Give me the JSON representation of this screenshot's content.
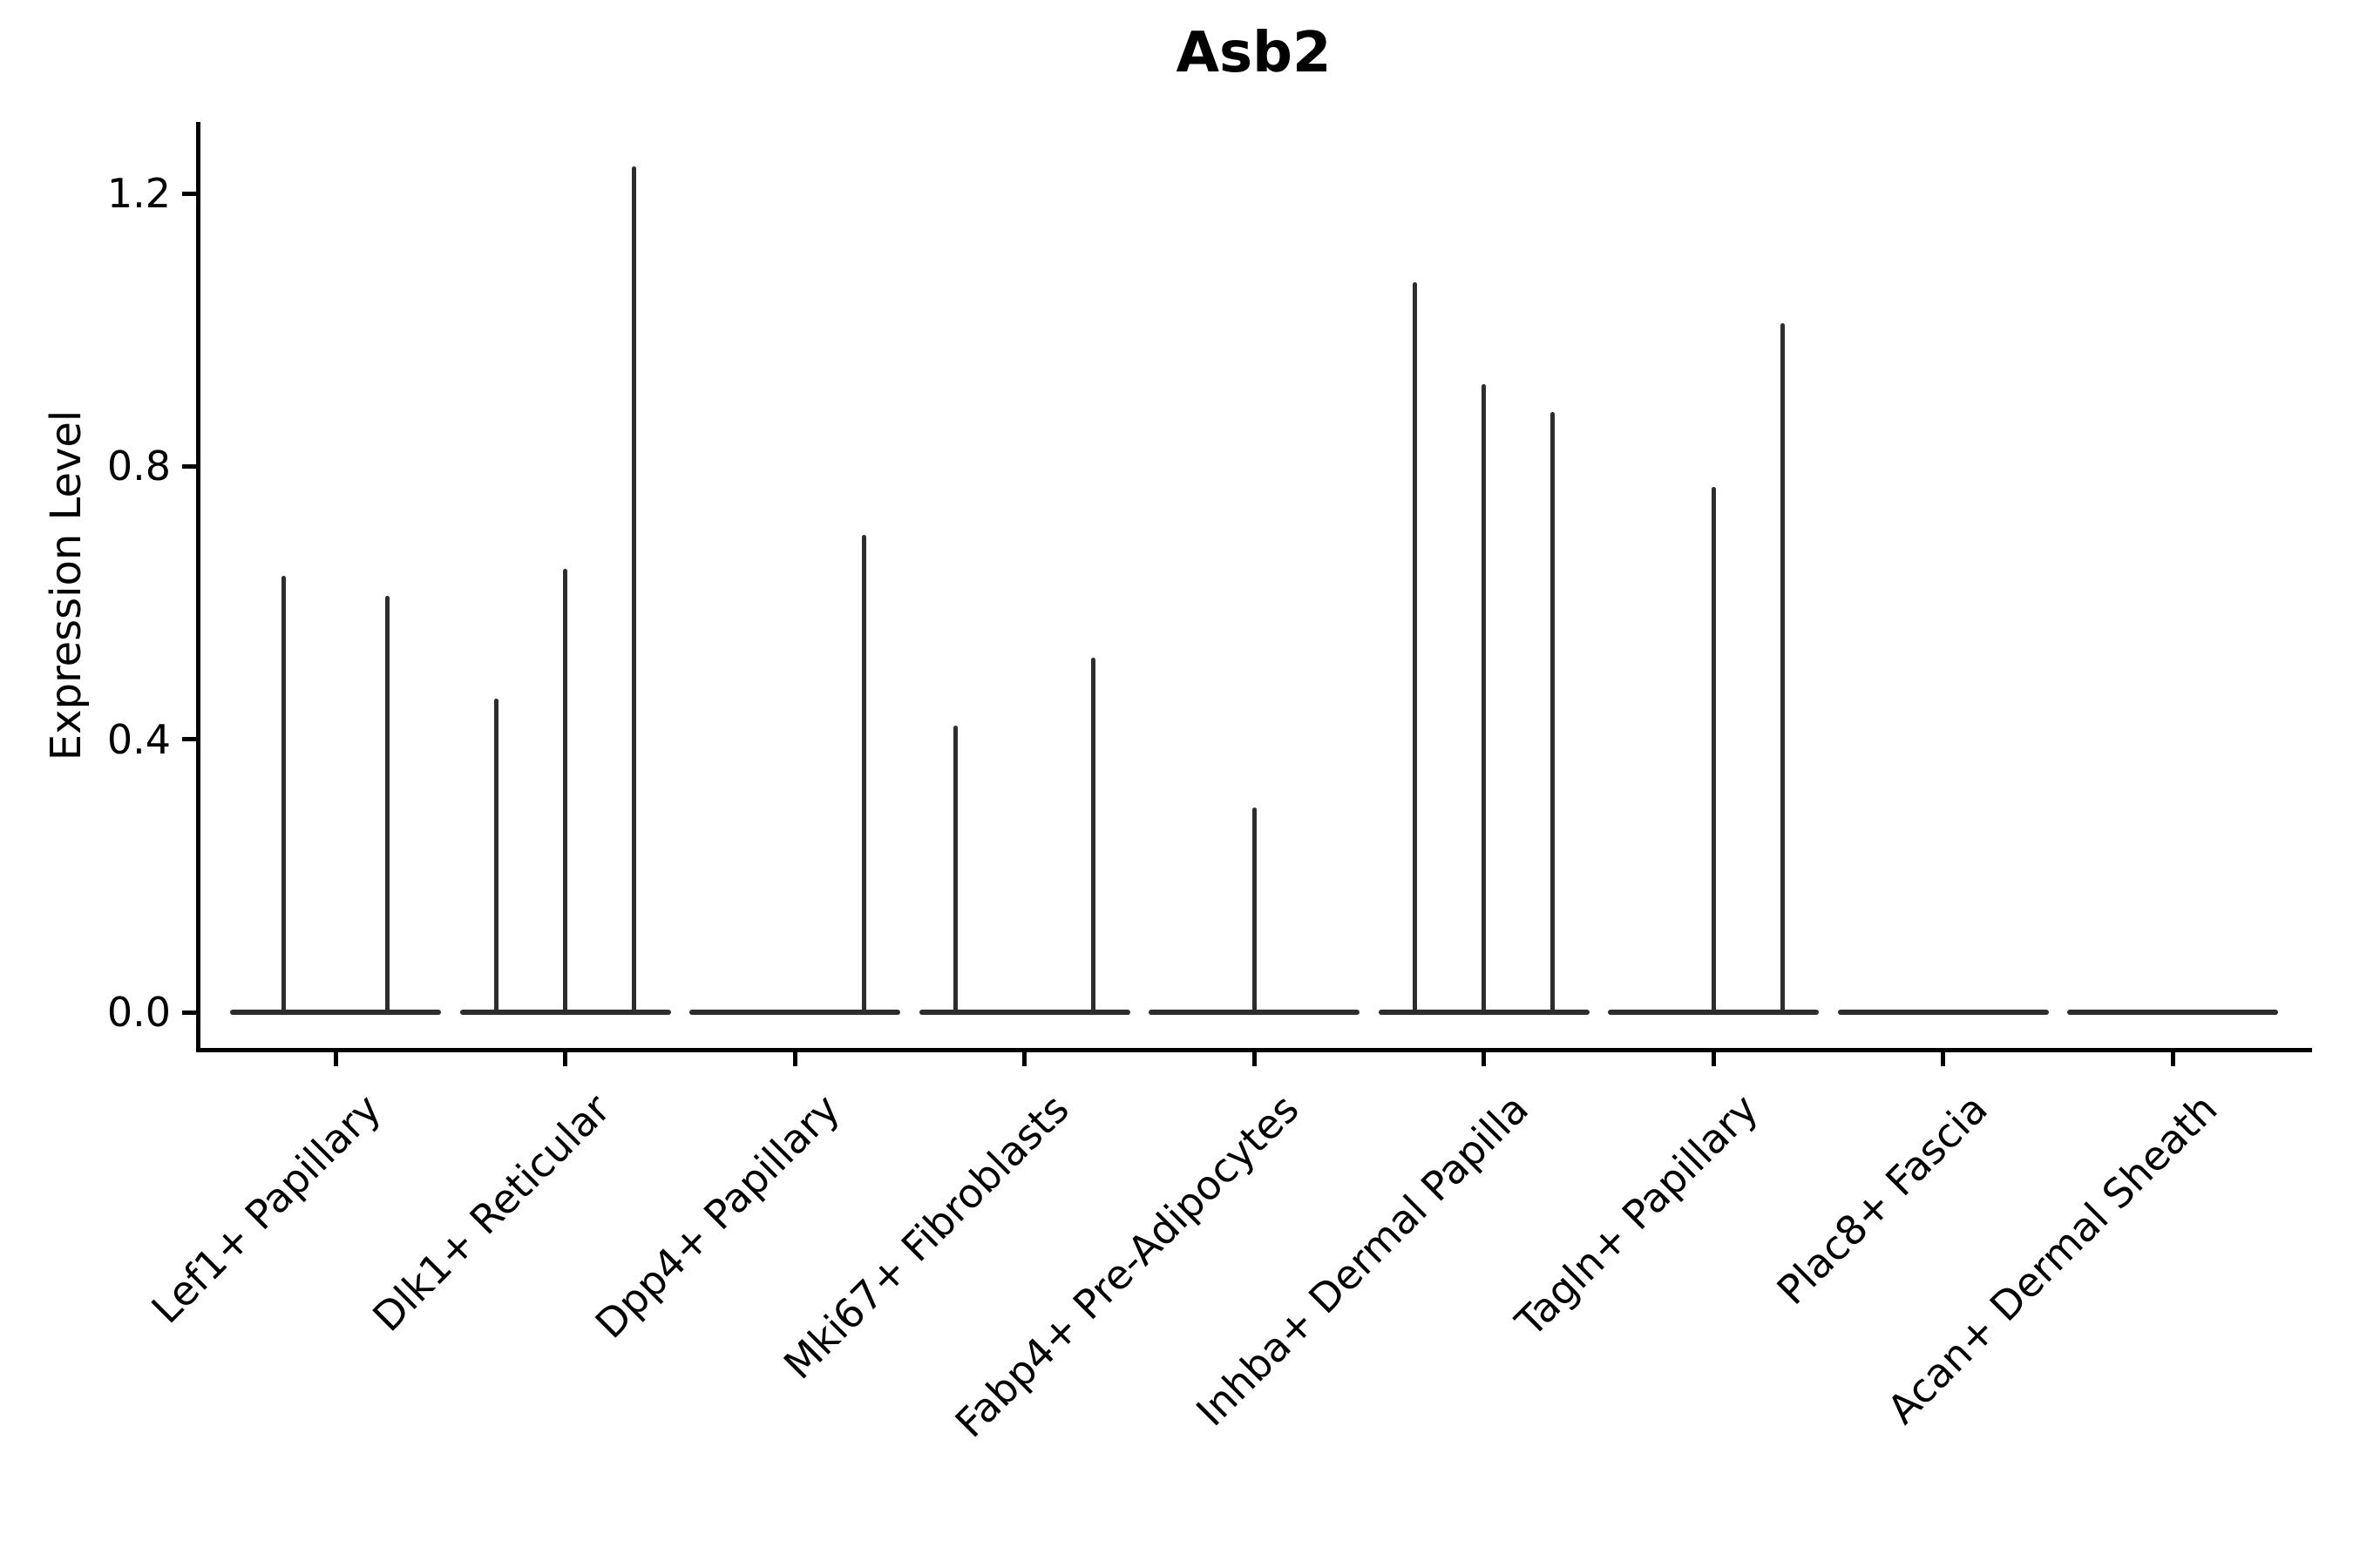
{
  "title": "Asb2",
  "axes": {
    "ylabel": "Expression Level",
    "ytick_labels": [
      "0.0",
      "0.4",
      "0.8",
      "1.2"
    ]
  },
  "colors": {
    "violin": "#2d2d2d",
    "axis": "#000000",
    "text": "#000000",
    "background": "#ffffff"
  },
  "chart_data": {
    "type": "violin",
    "title": "Asb2",
    "xlabel": "",
    "ylabel": "Expression Level",
    "yticks": [
      0.0,
      0.4,
      0.8,
      1.2
    ],
    "ylim": [
      -0.06,
      1.31
    ],
    "grid": false,
    "legend": "none",
    "description": "Violin plot of Asb2 expression per fibroblast cluster; each category contains dodged violins (split groups). Nearly all cells are at 0, so each violin renders as a wide flat base at 0 with a thin vertical spike up to its maximum expression value. Categories with all-zero violins show only the flat base.",
    "categories": [
      "Lef1+ Papillary",
      "Dlk1+ Reticular",
      "Dpp4+ Papillary",
      "Mki67+ Fibroblasts",
      "Fabp4+ Pre-Adipocytes",
      "Inhba+ Dermal Papilla",
      "Tagln+ Papillary",
      "Plac8+ Fascia",
      "Acan+ Dermal Sheath"
    ],
    "series": [
      {
        "category": "Lef1+ Papillary",
        "violin_max_expression": [
          0.64,
          0.61
        ]
      },
      {
        "category": "Dlk1+ Reticular",
        "violin_max_expression": [
          0.46,
          0.65,
          1.24
        ]
      },
      {
        "category": "Dpp4+ Papillary",
        "violin_max_expression": [
          0,
          0,
          0.7
        ]
      },
      {
        "category": "Mki67+ Fibroblasts",
        "violin_max_expression": [
          0.42,
          0,
          0.52
        ]
      },
      {
        "category": "Fabp4+ Pre-Adipocytes",
        "violin_max_expression": [
          0,
          0.3,
          0
        ]
      },
      {
        "category": "Inhba+ Dermal Papilla",
        "violin_max_expression": [
          1.07,
          0.92,
          0.88
        ]
      },
      {
        "category": "Tagln+ Papillary",
        "violin_max_expression": [
          0,
          0.77,
          1.01
        ]
      },
      {
        "category": "Plac8+ Fascia",
        "violin_max_expression": [
          0,
          0,
          0
        ]
      },
      {
        "category": "Acan+ Dermal Sheath",
        "violin_max_expression": [
          0,
          0,
          0
        ]
      }
    ]
  }
}
